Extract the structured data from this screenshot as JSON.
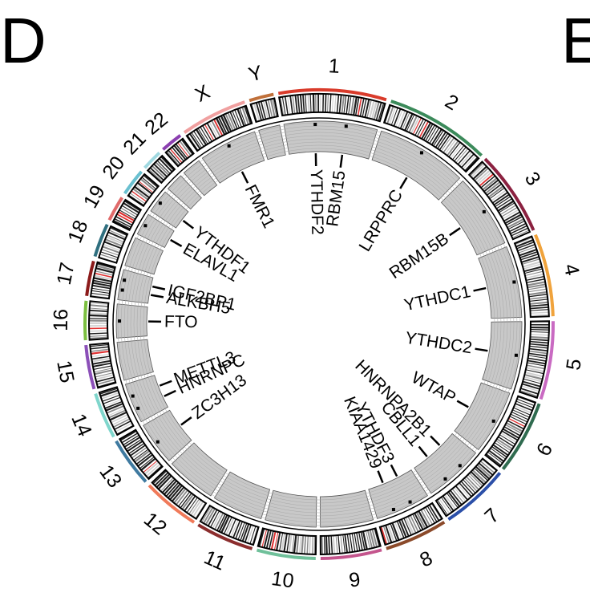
{
  "panel": {
    "letter": "D",
    "next_letter": "E"
  },
  "chromosomes": [
    {
      "name": "1",
      "size": 249,
      "color": "#d93b2b"
    },
    {
      "name": "2",
      "size": 243,
      "color": "#3b8a5a"
    },
    {
      "name": "3",
      "size": 198,
      "color": "#8b2140"
    },
    {
      "name": "4",
      "size": 191,
      "color": "#f0a33c"
    },
    {
      "name": "5",
      "size": 181,
      "color": "#c96ac2"
    },
    {
      "name": "6",
      "size": 171,
      "color": "#2f6b4f"
    },
    {
      "name": "7",
      "size": 159,
      "color": "#2b4fa8"
    },
    {
      "name": "8",
      "size": 146,
      "color": "#8b4a2a"
    },
    {
      "name": "9",
      "size": 141,
      "color": "#c4558d"
    },
    {
      "name": "10",
      "size": 136,
      "color": "#6fc09a"
    },
    {
      "name": "11",
      "size": 135,
      "color": "#8b2d2d"
    },
    {
      "name": "12",
      "size": 133,
      "color": "#f07a5a"
    },
    {
      "name": "13",
      "size": 115,
      "color": "#3f7aa0"
    },
    {
      "name": "14",
      "size": 107,
      "color": "#7fd6cc"
    },
    {
      "name": "15",
      "size": 102,
      "color": "#8b4fb8"
    },
    {
      "name": "16",
      "size": 90,
      "color": "#7cc040"
    },
    {
      "name": "17",
      "size": 81,
      "color": "#8b1a1a"
    },
    {
      "name": "18",
      "size": 78,
      "color": "#2f6f7f"
    },
    {
      "name": "19",
      "size": 59,
      "color": "#e06a6a"
    },
    {
      "name": "20",
      "size": 63,
      "color": "#6ac0d0"
    },
    {
      "name": "21",
      "size": 48,
      "color": "#a0d8e0"
    },
    {
      "name": "22",
      "size": 51,
      "color": "#8b3fb0"
    },
    {
      "name": "X",
      "size": 155,
      "color": "#f0a0a0"
    },
    {
      "name": "Y",
      "size": 57,
      "color": "#c0703a"
    }
  ],
  "genes": [
    {
      "name": "HNRNPC",
      "chr": "14"
    },
    {
      "name": "YTHDF2",
      "chr": "1"
    },
    {
      "name": "RBM15",
      "chr": "1"
    },
    {
      "name": "LRPPRC",
      "chr": "2"
    },
    {
      "name": "RBM15B",
      "chr": "3"
    },
    {
      "name": "YTHDC1",
      "chr": "4"
    },
    {
      "name": "YTHDC2",
      "chr": "5"
    },
    {
      "name": "WTAP",
      "chr": "6"
    },
    {
      "name": "HNRNPA2B1",
      "chr": "7"
    },
    {
      "name": "CBLL1",
      "chr": "7"
    },
    {
      "name": "YTHDF3",
      "chr": "8"
    },
    {
      "name": "KIAA1429",
      "chr": "8"
    },
    {
      "name": "ZC3H13",
      "chr": "13"
    },
    {
      "name": "METTL3",
      "chr": "14"
    },
    {
      "name": "FTO",
      "chr": "16"
    },
    {
      "name": "ALKBH5",
      "chr": "17"
    },
    {
      "name": "IGF2BP1",
      "chr": "17"
    },
    {
      "name": "ELAVL1",
      "chr": "19"
    },
    {
      "name": "YTHDF1",
      "chr": "20"
    },
    {
      "name": "FMR1",
      "chr": "X"
    }
  ],
  "colors": {
    "ring_fill": "#c8c8c8",
    "band_dark": "#222222",
    "band_red": "#e03030",
    "outline": "#000000"
  }
}
